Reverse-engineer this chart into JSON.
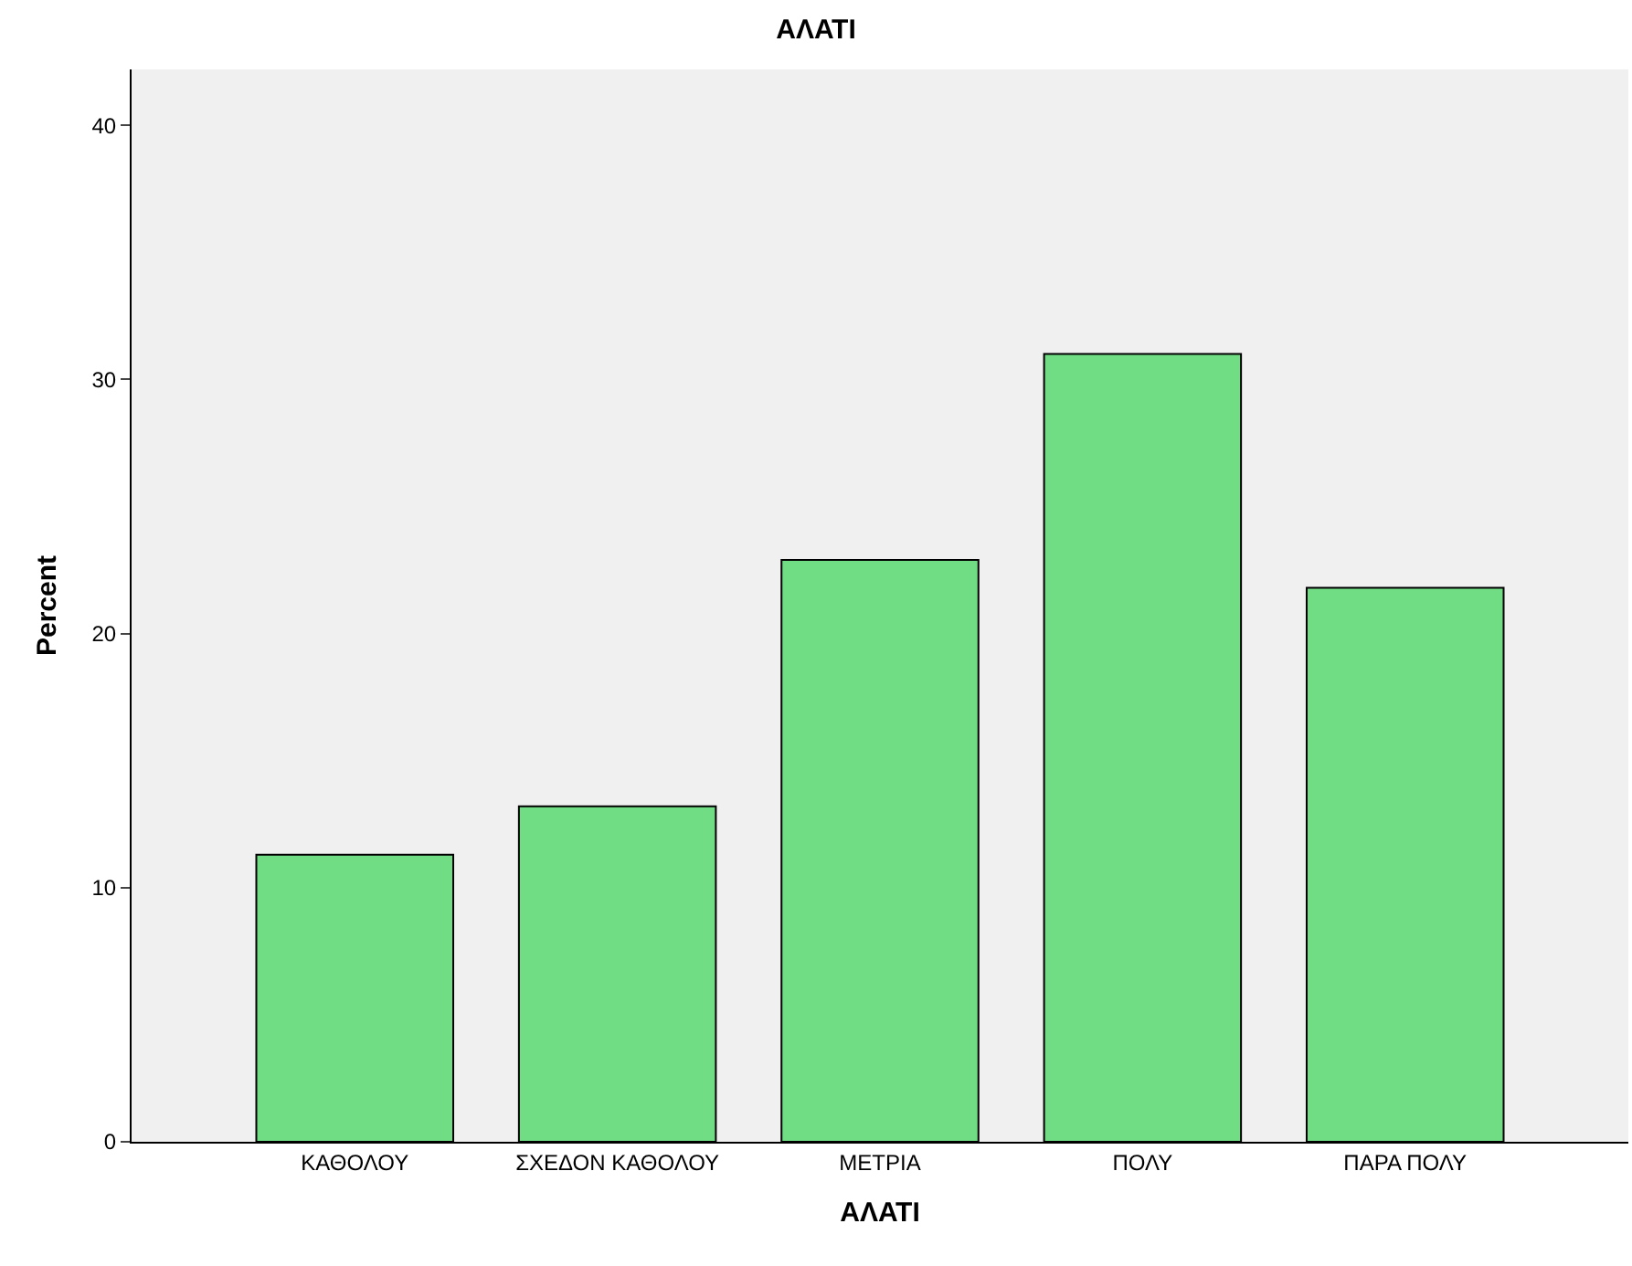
{
  "chart_data": {
    "type": "bar",
    "title": "ΑΛΑΤΙ",
    "xlabel": "ΑΛΑΤΙ",
    "ylabel": "Percent",
    "categories": [
      "ΚΑΘΟΛΟΥ",
      "ΣΧΕΔΟΝ ΚΑΘΟΛΟΥ",
      "ΜΕΤΡΙΑ",
      "ΠΟΛΥ",
      "ΠΑΡΑ ΠΟΛΥ"
    ],
    "values": [
      11.3,
      13.2,
      22.9,
      31.0,
      21.8
    ],
    "color": "#70dc84",
    "ylim": [
      0,
      42.2
    ],
    "yticks": [
      0,
      10,
      20,
      30,
      40
    ],
    "grid": false,
    "legend": false
  }
}
